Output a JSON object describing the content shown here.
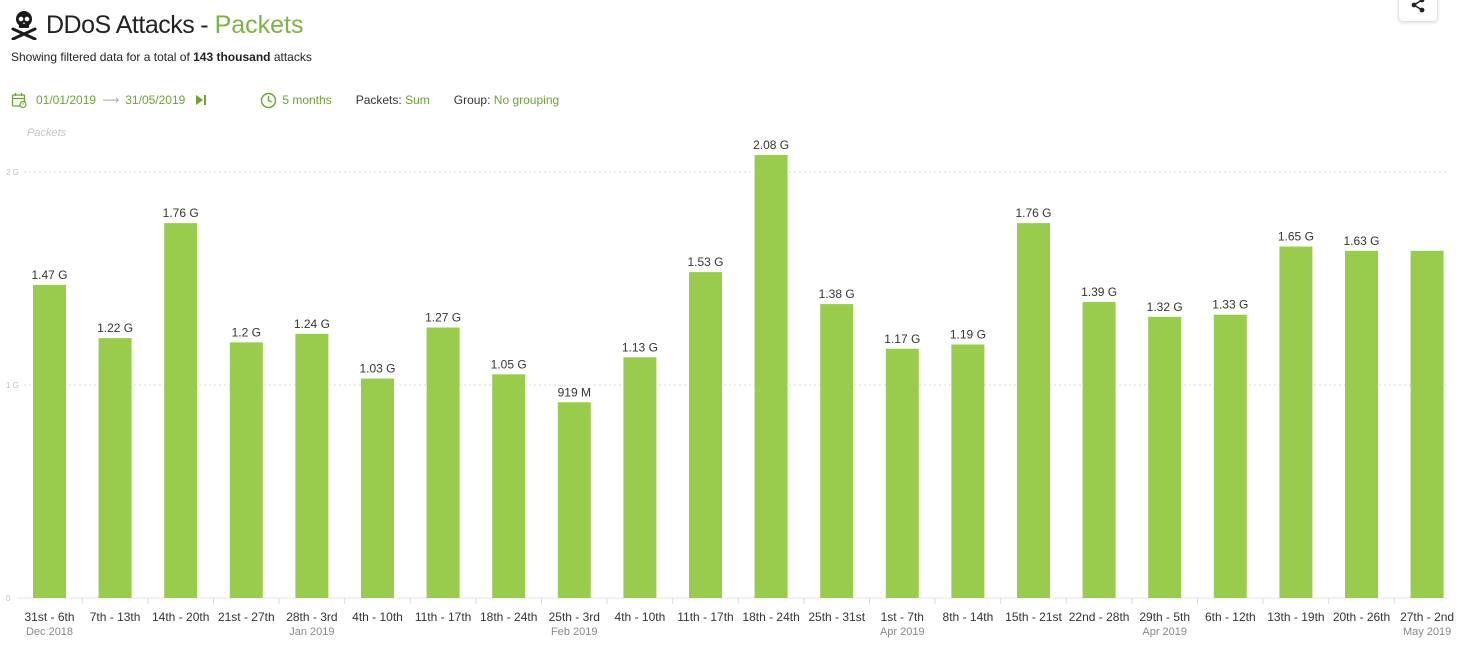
{
  "header": {
    "title_main": "DDoS Attacks",
    "title_sep": "-",
    "title_accent": "Packets",
    "subtitle_prefix": "Showing filtered data for a total of",
    "subtitle_bold": "143 thousand",
    "subtitle_suffix": "attacks",
    "skull_icon": "skull-crossbones-icon",
    "share_icon": "share-icon"
  },
  "filters": {
    "start_date": "01/01/2019",
    "arrow": "⟶",
    "end_date": "31/05/2019",
    "end_icon": "skip-to-end-icon",
    "range": "5 months",
    "packets_label": "Packets:",
    "packets_value": "Sum",
    "group_label": "Group:",
    "group_value": "No grouping"
  },
  "colors": {
    "accent": "#7cb342",
    "bar": "#99cc4d",
    "grid": "#d9d9d9"
  },
  "chart_data": {
    "type": "bar",
    "ylabel": "Packets",
    "ylim": [
      0,
      2200000000
    ],
    "yticks": [
      {
        "value": 0,
        "label": "0"
      },
      {
        "value": 1000000000,
        "label": "1 G"
      },
      {
        "value": 2000000000,
        "label": "2 G"
      }
    ],
    "grid": true,
    "categories": [
      "31st - 6th",
      "7th - 13th",
      "14th - 20th",
      "21st - 27th",
      "28th - 3rd",
      "4th - 10th",
      "11th - 17th",
      "18th - 24th",
      "25th - 3rd",
      "4th - 10th",
      "11th - 17th",
      "18th - 24th",
      "25th - 31st",
      "1st - 7th",
      "8th - 14th",
      "15th - 21st",
      "22nd - 28th",
      "29th - 5th",
      "6th - 12th",
      "13th - 19th",
      "20th - 26th",
      "27th - 2nd"
    ],
    "sublabels": [
      "Dec 2018",
      "",
      "",
      "",
      "Jan 2019",
      "",
      "",
      "",
      "Feb 2019",
      "",
      "",
      "",
      "",
      "Apr 2019",
      "",
      "",
      "",
      "Apr 2019",
      "",
      "",
      "",
      "May 2019"
    ],
    "values": [
      1470000000,
      1220000000,
      1760000000,
      1200000000,
      1240000000,
      1030000000,
      1270000000,
      1050000000,
      919000000,
      1130000000,
      1530000000,
      2080000000,
      1380000000,
      1170000000,
      1190000000,
      1760000000,
      1390000000,
      1320000000,
      1330000000,
      1650000000,
      1630000000,
      1630000000
    ],
    "value_labels": [
      "1.47 G",
      "1.22 G",
      "1.76 G",
      "1.2 G",
      "1.24 G",
      "1.03 G",
      "1.27 G",
      "1.05 G",
      "919 M",
      "1.13 G",
      "1.53 G",
      "2.08 G",
      "1.38 G",
      "1.17 G",
      "1.19 G",
      "1.76 G",
      "1.39 G",
      "1.32 G",
      "1.33 G",
      "1.65 G",
      "1.63 G",
      ""
    ]
  }
}
